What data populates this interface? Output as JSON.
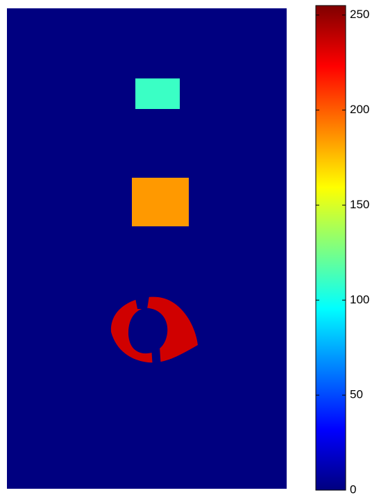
{
  "chart_data": {
    "type": "heatmap",
    "values": [
      0,
      110,
      185,
      235
    ],
    "colormap": "jet",
    "clim": [
      0,
      255
    ],
    "cticks": [
      0,
      50,
      100,
      150,
      200,
      250
    ]
  }
}
